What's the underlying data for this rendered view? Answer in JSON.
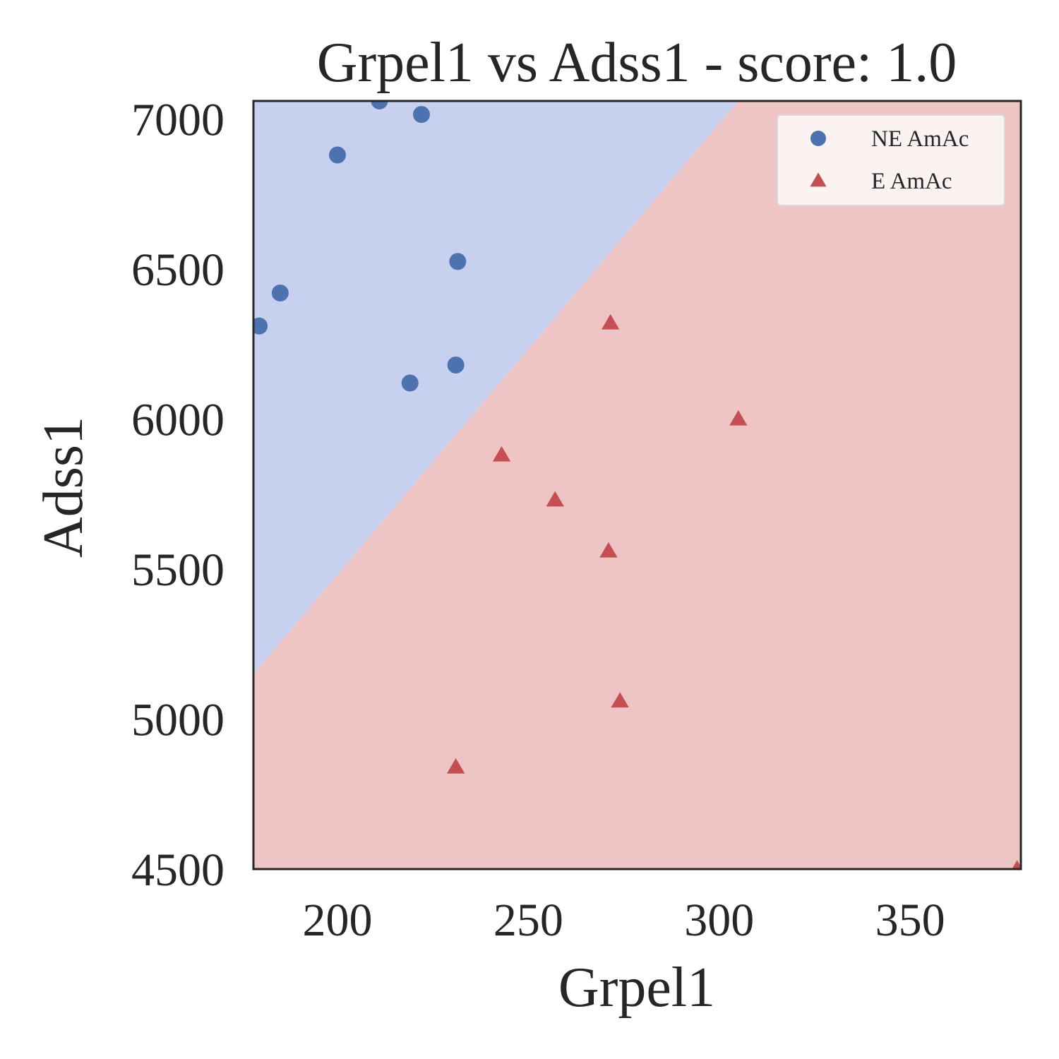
{
  "chart_data": {
    "type": "scatter",
    "title": "Grpel1 vs Adss1 - score: 1.0",
    "xlabel": "Grpel1",
    "ylabel": "Adss1",
    "xlim": [
      178,
      379
    ],
    "ylim": [
      4500,
      7060
    ],
    "xticks": [
      200,
      250,
      300,
      350
    ],
    "yticks": [
      4500,
      5000,
      5500,
      6000,
      6500,
      7000
    ],
    "xtick_labels": [
      "200",
      "250",
      "300",
      "350"
    ],
    "ytick_labels": [
      "4500",
      "5000",
      "5500",
      "6000",
      "6500",
      "7000"
    ],
    "grid": false,
    "legend_position": "top-right",
    "decision_boundary": {
      "points": [
        [
          178,
          5150
        ],
        [
          305,
          7060
        ]
      ],
      "above_class": "NE AmAc",
      "below_class": "E AmAc",
      "above_color": "#c8d0f0",
      "below_color": "#eec4c4"
    },
    "series": [
      {
        "name": "NE AmAc",
        "marker": "circle",
        "color": "#4c72b0",
        "points": [
          [
            179.5,
            6310
          ],
          [
            185,
            6420
          ],
          [
            200,
            6880
          ],
          [
            211,
            7060
          ],
          [
            219,
            6120
          ],
          [
            222,
            7015
          ],
          [
            231,
            6180
          ],
          [
            231.5,
            6525
          ]
        ]
      },
      {
        "name": "E AmAc",
        "marker": "triangle",
        "color": "#c44e52",
        "points": [
          [
            231,
            4840
          ],
          [
            243,
            5880
          ],
          [
            257,
            5730
          ],
          [
            271,
            5560
          ],
          [
            271.5,
            6320
          ],
          [
            274,
            5060
          ],
          [
            305,
            6000
          ],
          [
            378,
            4500
          ]
        ]
      }
    ]
  }
}
